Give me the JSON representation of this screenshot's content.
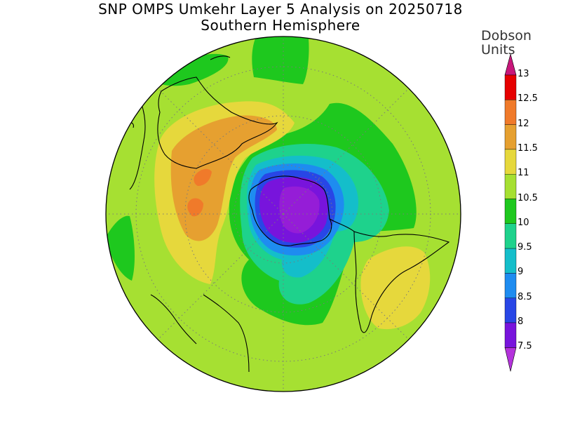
{
  "title": {
    "main": "SNP OMPS Umkehr Layer 5 Analysis on 20250718",
    "sub": "Southern Hemisphere"
  },
  "colorbar": {
    "units_line1": "Dobson",
    "units_line2": "Units",
    "levels": [
      {
        "label": "13",
        "color": "#c8167a"
      },
      {
        "label": "12.5",
        "color": "#e60000"
      },
      {
        "label": "12",
        "color": "#f07a2a"
      },
      {
        "label": "11.5",
        "color": "#e6a030"
      },
      {
        "label": "11",
        "color": "#e6d83c"
      },
      {
        "label": "10.5",
        "color": "#a6e032"
      },
      {
        "label": "10",
        "color": "#1ec81e"
      },
      {
        "label": "9.5",
        "color": "#1ed28c"
      },
      {
        "label": "9",
        "color": "#14beca"
      },
      {
        "label": "8.5",
        "color": "#1e8cf0"
      },
      {
        "label": "8",
        "color": "#2846e6"
      },
      {
        "label": "7.5",
        "color": "#7814dc"
      }
    ],
    "top_arrow_color": "#c8167a",
    "bottom_arrow_color": "#b432dc"
  },
  "map": {
    "projection": "south-polar-stereographic",
    "background_value_color": "#a6e032"
  }
}
